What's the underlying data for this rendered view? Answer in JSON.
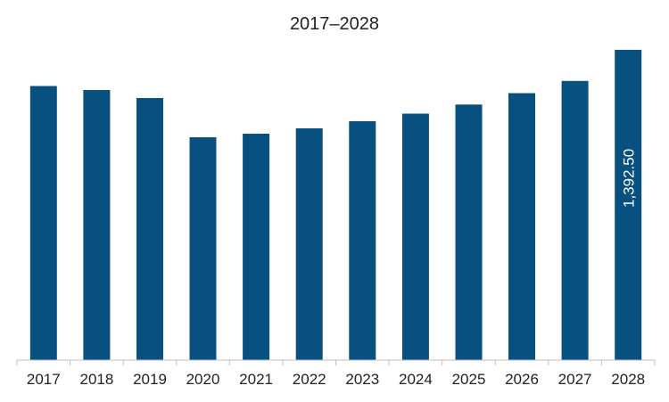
{
  "chart_data": {
    "type": "bar",
    "title": "2017–2028",
    "categories": [
      "2017",
      "2018",
      "2019",
      "2020",
      "2021",
      "2022",
      "2023",
      "2024",
      "2025",
      "2026",
      "2027",
      "2028"
    ],
    "values": [
      1230,
      1212,
      1176,
      1000,
      1016,
      1040,
      1072,
      1106,
      1147,
      1198,
      1253,
      1392.5
    ],
    "data_labels": [
      {
        "category": "2028",
        "text": "1,392.50"
      }
    ],
    "ylim": [
      0,
      1400
    ],
    "grid": false,
    "legend": "none",
    "bar_color": "#08507F",
    "axis_color": "#BFBFBF"
  }
}
